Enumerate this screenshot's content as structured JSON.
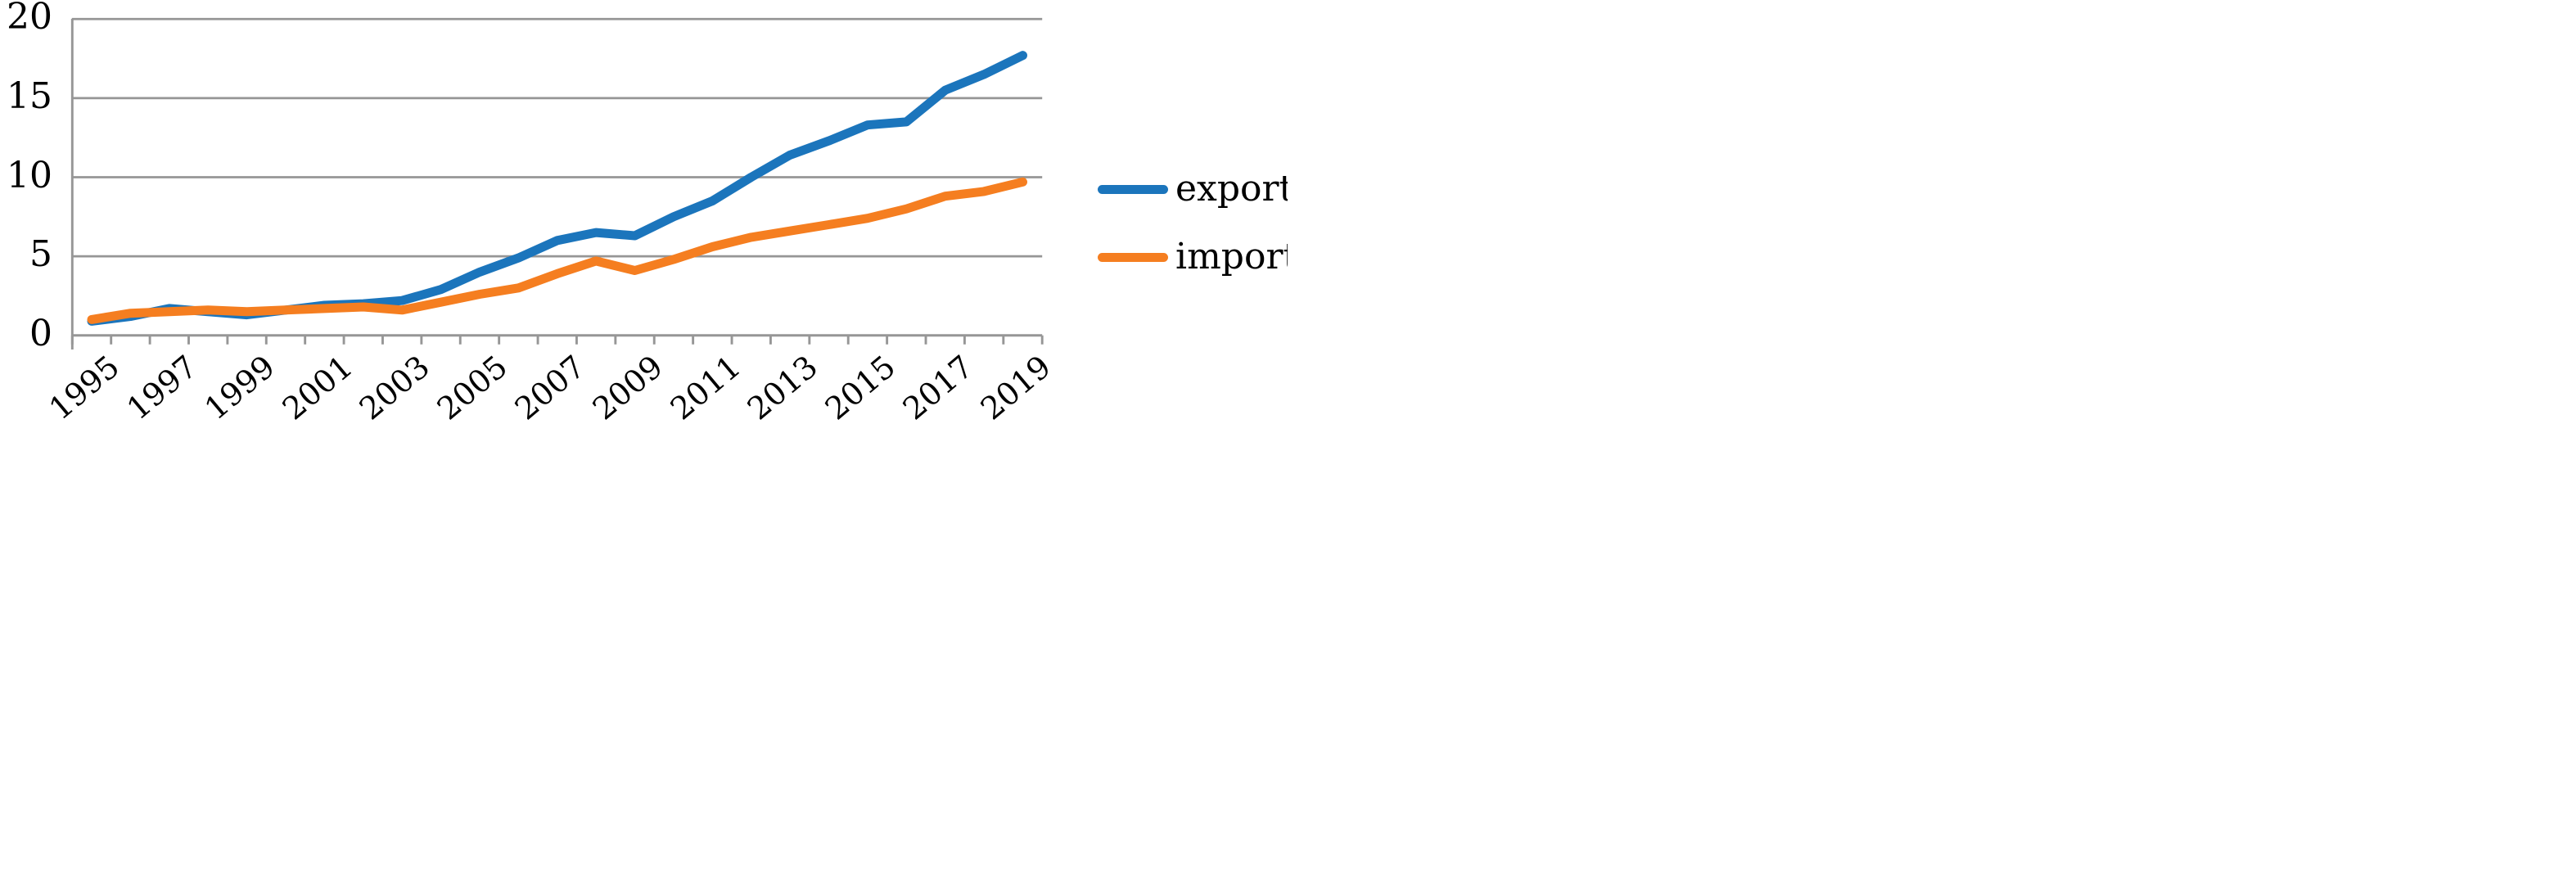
{
  "chart_data": {
    "type": "line",
    "title": "",
    "xlabel": "",
    "ylabel": "",
    "x": [
      1995,
      1996,
      1997,
      1998,
      1999,
      2000,
      2001,
      2002,
      2003,
      2004,
      2005,
      2006,
      2007,
      2008,
      2009,
      2010,
      2011,
      2012,
      2013,
      2014,
      2015,
      2016,
      2017,
      2018,
      2019
    ],
    "series": [
      {
        "name": "export",
        "color": "#1B75BC",
        "values": [
          0.9,
          1.2,
          1.7,
          1.5,
          1.3,
          1.6,
          1.9,
          2.0,
          2.2,
          2.9,
          4.0,
          4.9,
          6.0,
          6.5,
          6.3,
          7.5,
          8.5,
          10.0,
          11.4,
          12.3,
          13.3,
          13.5,
          15.5,
          16.5,
          17.7
        ]
      },
      {
        "name": "import",
        "color": "#F57E20",
        "values": [
          1.0,
          1.4,
          1.5,
          1.6,
          1.5,
          1.6,
          1.7,
          1.8,
          1.6,
          2.1,
          2.6,
          3.0,
          3.9,
          4.7,
          4.1,
          4.8,
          5.6,
          6.2,
          6.6,
          7.0,
          7.4,
          8.0,
          8.8,
          9.1,
          9.7
        ]
      }
    ],
    "ylim": [
      0,
      20
    ],
    "yticks": [
      0,
      5,
      10,
      15,
      20
    ],
    "ytick_labels": [
      "0",
      "5",
      "10",
      "15",
      "20"
    ],
    "xtick_label_years": [
      1995,
      1997,
      1999,
      2001,
      2003,
      2005,
      2007,
      2009,
      2011,
      2013,
      2015,
      2017,
      2019
    ],
    "grid": "horizontal",
    "gridline_color": "#969696",
    "legend_position": "right"
  }
}
